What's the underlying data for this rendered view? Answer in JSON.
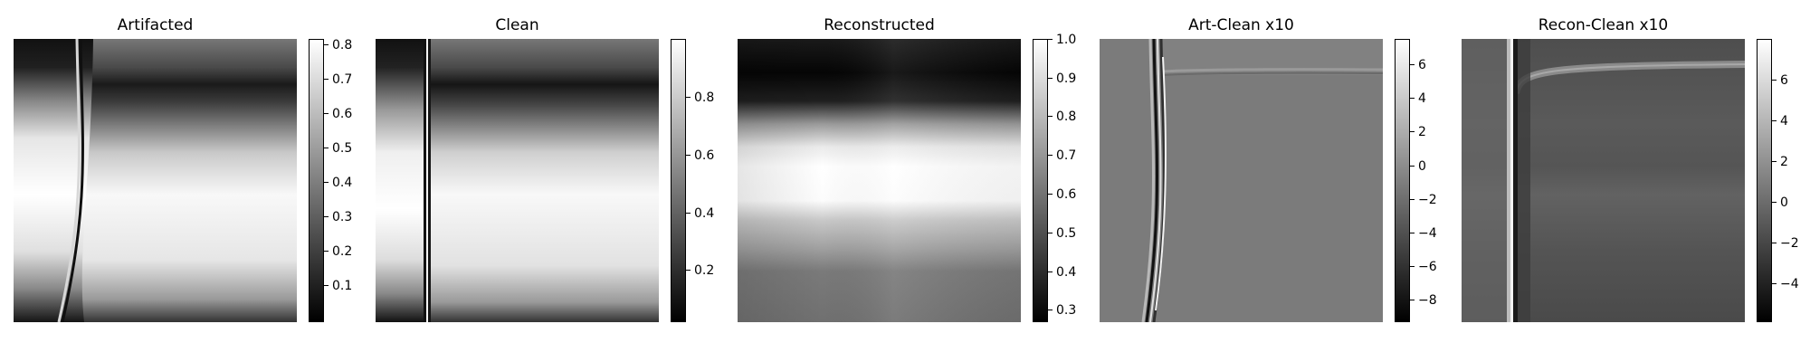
{
  "figure": {
    "cmap": "grayscale (black = low, white = high)"
  },
  "panels": [
    {
      "title": "Artifacted",
      "colorbar": {
        "min": 0.01,
        "max": 0.83,
        "ticks": [
          0.1,
          0.2,
          0.3,
          0.4,
          0.5,
          0.6,
          0.7,
          0.8
        ],
        "labels": [
          "0.1",
          "0.2",
          "0.3",
          "0.4",
          "0.5",
          "0.6",
          "0.7",
          "0.8"
        ]
      }
    },
    {
      "title": "Clean",
      "colorbar": {
        "min": 0.0,
        "max": 0.99,
        "ticks": [
          0.2,
          0.4,
          0.6,
          0.8
        ],
        "labels": [
          "0.2",
          "0.4",
          "0.6",
          "0.8"
        ]
      }
    },
    {
      "title": "Reconstructed",
      "colorbar": {
        "min": 0.27,
        "max": 1.0,
        "ticks": [
          0.3,
          0.4,
          0.5,
          0.6,
          0.7,
          0.8,
          0.9,
          1.0
        ],
        "labels": [
          "0.3",
          "0.4",
          "0.5",
          "0.6",
          "0.7",
          "0.8",
          "0.9",
          "1.0"
        ]
      }
    },
    {
      "title": "Art-Clean x10",
      "colorbar": {
        "min": -9.3,
        "max": 7.5,
        "ticks": [
          -8,
          -6,
          -4,
          -2,
          0,
          2,
          4,
          6
        ],
        "labels": [
          "−8",
          "−6",
          "−4",
          "−2",
          "0",
          "2",
          "4",
          "6"
        ]
      }
    },
    {
      "title": "Recon-Clean x10",
      "colorbar": {
        "min": -5.9,
        "max": 7.9,
        "ticks": [
          -4,
          -2,
          0,
          2,
          4,
          6
        ],
        "labels": [
          "−4",
          "−2",
          "0",
          "2",
          "4",
          "6"
        ]
      }
    }
  ],
  "chart_data": [
    {
      "type": "heatmap",
      "title": "Artifacted",
      "colorbar_range": [
        0.01,
        0.83
      ]
    },
    {
      "type": "heatmap",
      "title": "Clean",
      "colorbar_range": [
        0.0,
        0.99
      ]
    },
    {
      "type": "heatmap",
      "title": "Reconstructed",
      "colorbar_range": [
        0.27,
        1.0
      ]
    },
    {
      "type": "heatmap",
      "title": "Art-Clean x10",
      "colorbar_range": [
        -9.3,
        7.5
      ]
    },
    {
      "type": "heatmap",
      "title": "Recon-Clean x10",
      "colorbar_range": [
        -5.9,
        7.9
      ]
    }
  ]
}
